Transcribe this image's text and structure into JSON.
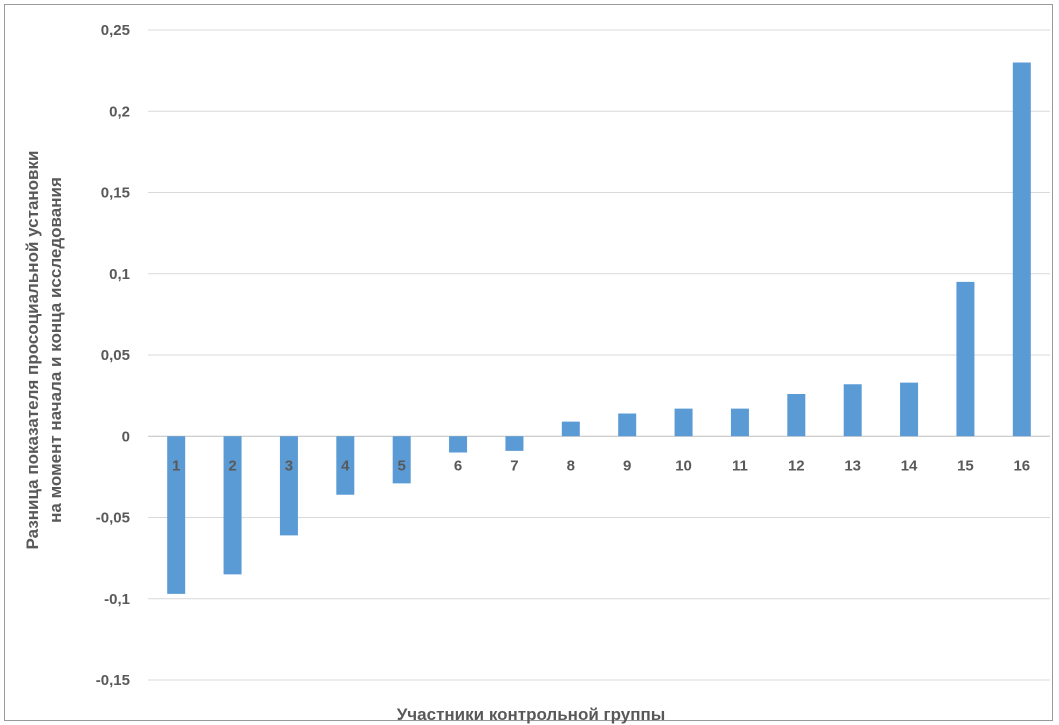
{
  "chart_data": {
    "type": "bar",
    "categories": [
      "1",
      "2",
      "3",
      "4",
      "5",
      "6",
      "7",
      "8",
      "9",
      "10",
      "11",
      "12",
      "13",
      "14",
      "15",
      "16"
    ],
    "values": [
      -0.097,
      -0.085,
      -0.061,
      -0.036,
      -0.029,
      -0.01,
      -0.009,
      0.009,
      0.014,
      0.017,
      0.017,
      0.026,
      0.032,
      0.033,
      0.095,
      0.23
    ],
    "xlabel": "Участники контрольной группы",
    "ylabel_line1": "Разница показателя просоциальной установки",
    "ylabel_line2": "на момент начала и конца исследования",
    "ylim": [
      -0.15,
      0.25
    ],
    "yticks": [
      0.25,
      0.2,
      0.15,
      0.1,
      0.05,
      0,
      -0.05,
      -0.1,
      -0.15
    ],
    "ytick_labels": [
      "0,25",
      "0,2",
      "0,15",
      "0,1",
      "0,05",
      "0",
      "-0,05",
      "-0,1",
      "-0,15"
    ],
    "bar_color": "#5b9bd5",
    "grid": true,
    "legend": "none"
  }
}
